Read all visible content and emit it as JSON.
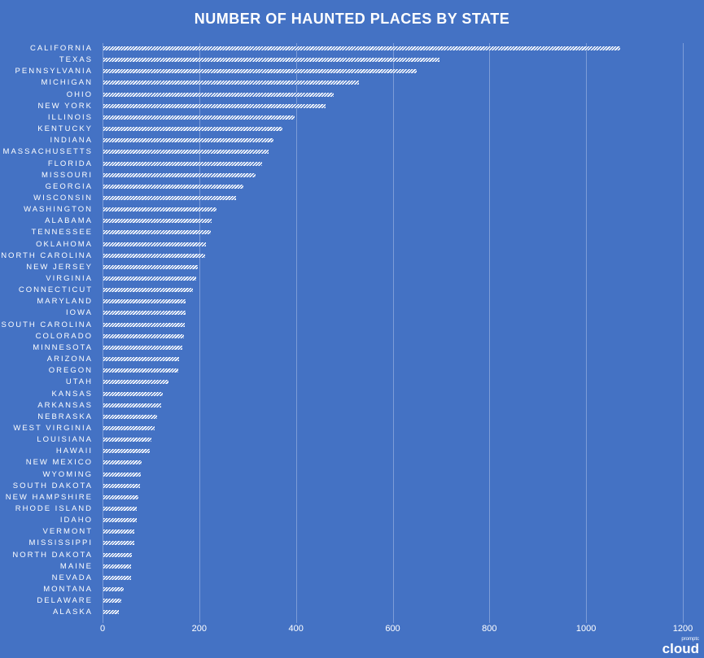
{
  "chart_data": {
    "type": "bar",
    "orientation": "horizontal",
    "title": "NUMBER OF HAUNTED PLACES BY STATE",
    "xlabel": "",
    "ylabel": "",
    "xlim": [
      0,
      1200
    ],
    "x_ticks": [
      0,
      200,
      400,
      600,
      800,
      1000,
      1200
    ],
    "grid": true,
    "legend": null,
    "categories": [
      "CALIFORNIA",
      "TEXAS",
      "PENNSYLVANIA",
      "MICHIGAN",
      "OHIO",
      "NEW YORK",
      "ILLINOIS",
      "KENTUCKY",
      "INDIANA",
      "MASSACHUSETTS",
      "FLORIDA",
      "MISSOURI",
      "GEORGIA",
      "WISCONSIN",
      "WASHINGTON",
      "ALABAMA",
      "TENNESSEE",
      "OKLAHOMA",
      "NORTH CAROLINA",
      "NEW JERSEY",
      "VIRGINIA",
      "CONNECTICUT",
      "MARYLAND",
      "IOWA",
      "SOUTH CAROLINA",
      "COLORADO",
      "MINNESOTA",
      "ARIZONA",
      "OREGON",
      "UTAH",
      "KANSAS",
      "ARKANSAS",
      "NEBRASKA",
      "WEST VIRGINIA",
      "LOUISIANA",
      "HAWAII",
      "NEW MEXICO",
      "WYOMING",
      "SOUTH DAKOTA",
      "NEW HAMPSHIRE",
      "RHODE ISLAND",
      "IDAHO",
      "VERMONT",
      "MISSISSIPPI",
      "NORTH DAKOTA",
      "MAINE",
      "NEVADA",
      "MONTANA",
      "DELAWARE",
      "ALASKA"
    ],
    "values": [
      1069,
      695,
      648,
      529,
      476,
      460,
      396,
      370,
      352,
      342,
      328,
      315,
      290,
      274,
      234,
      224,
      222,
      212,
      211,
      195,
      192,
      185,
      170,
      170,
      168,
      167,
      164,
      157,
      155,
      135,
      123,
      120,
      111,
      106,
      99,
      96,
      79,
      77,
      76,
      72,
      69,
      69,
      64,
      64,
      59,
      57,
      57,
      42,
      37,
      32
    ]
  },
  "colors": {
    "background": "#4472C4",
    "bar": "#FFFFFF",
    "gridline": "#7D9DD8"
  },
  "watermark": {
    "small": "promptc",
    "big": "cloud"
  }
}
